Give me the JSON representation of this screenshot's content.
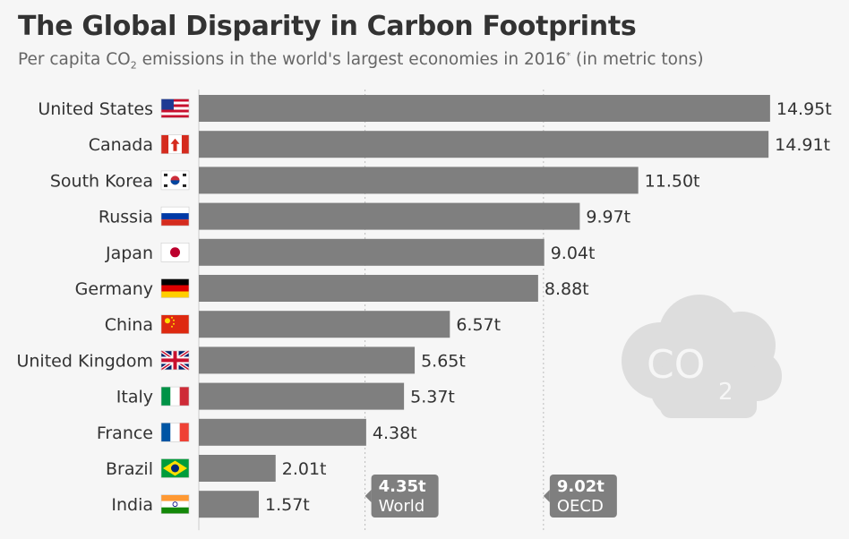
{
  "header": {
    "title": "The Global Disparity in Carbon Footprints",
    "subtitle_pre": "Per capita CO",
    "subtitle_sub": "2",
    "subtitle_mid": " emissions in the world's largest economies in 2016",
    "subtitle_sup": "*",
    "subtitle_post": " (in metric tons)"
  },
  "cloud_icon": {
    "text_main": "CO",
    "text_sub": "2"
  },
  "chart_data": {
    "type": "bar",
    "orientation": "horizontal",
    "title": "The Global Disparity in Carbon Footprints",
    "unit": "t",
    "categories": [
      "United States",
      "Canada",
      "South Korea",
      "Russia",
      "Japan",
      "Germany",
      "China",
      "United Kingdom",
      "Italy",
      "France",
      "Brazil",
      "India"
    ],
    "flags": [
      "us",
      "ca",
      "kr",
      "ru",
      "jp",
      "de",
      "cn",
      "gb",
      "it",
      "fr",
      "br",
      "in"
    ],
    "values": [
      14.95,
      14.91,
      11.5,
      9.97,
      9.04,
      8.88,
      6.57,
      5.65,
      5.37,
      4.38,
      2.01,
      1.57
    ],
    "value_labels": [
      "14.95t",
      "14.91t",
      "11.50t",
      "9.97t",
      "9.04t",
      "8.88t",
      "6.57t",
      "5.65t",
      "5.37t",
      "4.38t",
      "2.01t",
      "1.57t"
    ],
    "xlim": [
      0,
      15
    ],
    "bar_color": "#7f7f7f",
    "reference_lines": [
      {
        "value": 4.35,
        "value_label": "4.35t",
        "name": "World"
      },
      {
        "value": 9.02,
        "value_label": "9.02t",
        "name": "OECD"
      }
    ],
    "grid": false
  }
}
